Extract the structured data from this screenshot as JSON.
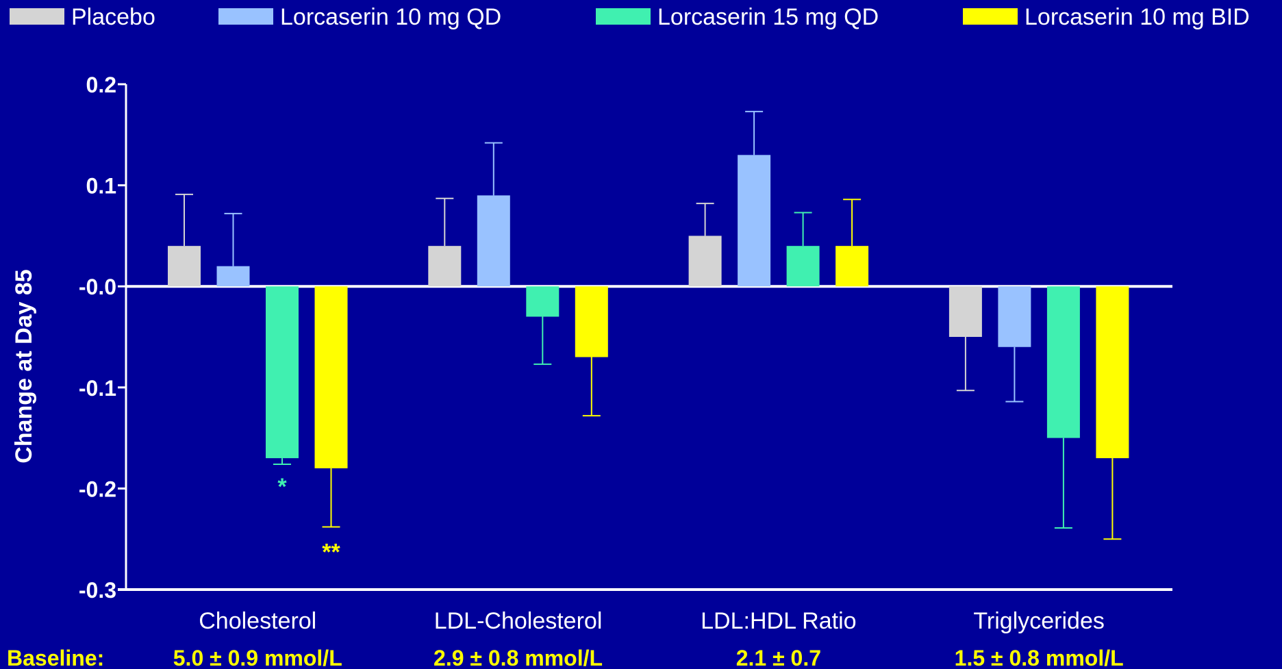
{
  "colors": {
    "background": "#000099",
    "axis": "#FFFFFF",
    "text": "#FFFFFF",
    "baseline_text": "#FFFF00"
  },
  "legend": [
    {
      "label": "Placebo",
      "color": "#D4D4D4"
    },
    {
      "label": "Lorcaserin 10 mg QD",
      "color": "#99C2FF"
    },
    {
      "label": "Lorcaserin 15 mg QD",
      "color": "#40F0B0"
    },
    {
      "label": "Lorcaserin 10 mg BID",
      "color": "#FFFF00"
    }
  ],
  "chart_data": {
    "type": "bar",
    "title": "",
    "xlabel": "",
    "ylabel": "Change at Day 85",
    "ylim": [
      -0.3,
      0.2
    ],
    "yticks": [
      0.2,
      0.1,
      -0.0,
      -0.1,
      -0.2,
      -0.3
    ],
    "ytick_labels": [
      "0.2",
      "0.1",
      "-0.0",
      "-0.1",
      "-0.2",
      "-0.3"
    ],
    "grid": false,
    "legend_position": "top",
    "categories": [
      "Cholesterol",
      "LDL-Cholesterol",
      "LDL:HDL Ratio",
      "Triglycerides"
    ],
    "series": [
      {
        "name": "Placebo",
        "color": "#D4D4D4",
        "values": [
          0.04,
          0.04,
          0.05,
          -0.05
        ],
        "errors": [
          0.051,
          0.047,
          0.032,
          0.053
        ]
      },
      {
        "name": "Lorcaserin 10 mg QD",
        "color": "#99C2FF",
        "values": [
          0.02,
          0.09,
          0.13,
          -0.06
        ],
        "errors": [
          0.052,
          0.052,
          0.043,
          0.054
        ]
      },
      {
        "name": "Lorcaserin 15 mg QD",
        "color": "#40F0B0",
        "values": [
          -0.17,
          -0.03,
          0.04,
          -0.15
        ],
        "errors": [
          0.006,
          0.047,
          0.033,
          0.089
        ]
      },
      {
        "name": "Lorcaserin 10 mg BID",
        "color": "#FFFF00",
        "values": [
          -0.18,
          -0.07,
          0.04,
          -0.17
        ],
        "errors": [
          0.058,
          0.058,
          0.046,
          0.08
        ]
      }
    ],
    "annotations": [
      {
        "text": "*",
        "category": 0,
        "series": 2,
        "color": "#40F0B0"
      },
      {
        "text": "**",
        "category": 0,
        "series": 3,
        "color": "#FFFF00"
      }
    ]
  },
  "baseline": {
    "label": "Baseline:",
    "values": [
      "5.0 ± 0.9 mmol/L",
      "2.9 ± 0.8 mmol/L",
      "2.1 ± 0.7",
      "1.5 ± 0.8 mmol/L"
    ]
  }
}
